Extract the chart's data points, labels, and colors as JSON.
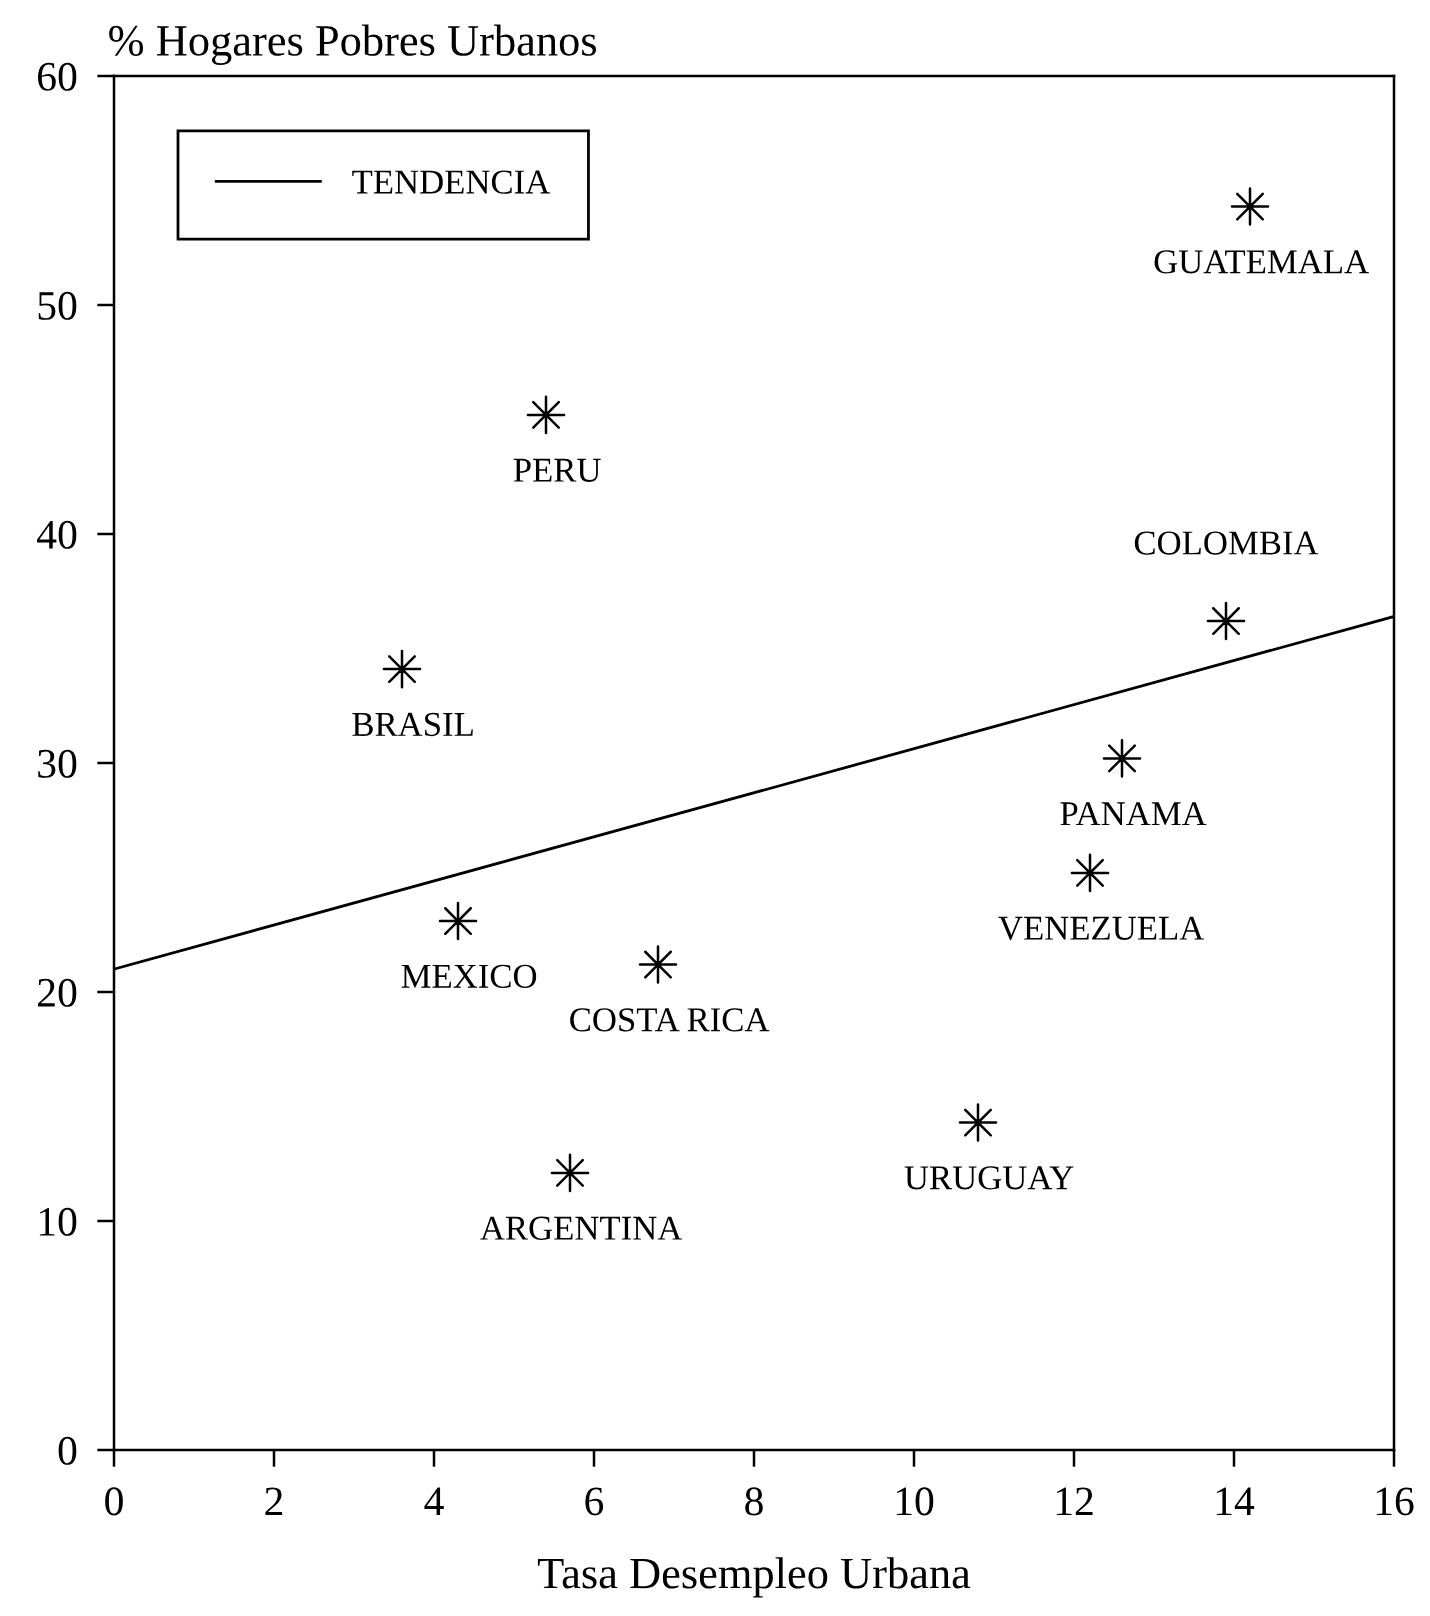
{
  "chart_data": {
    "type": "scatter",
    "xlabel": "Tasa Desempleo Urbana",
    "ylabel": "% Hogares Pobres Urbanos",
    "xlim": [
      0,
      16
    ],
    "xticks": [
      0,
      2,
      4,
      6,
      8,
      10,
      12,
      14,
      16
    ],
    "ylim": [
      0,
      60
    ],
    "yticks": [
      0,
      10,
      20,
      30,
      40,
      50,
      60
    ],
    "legend": "top left",
    "series": [
      {
        "color": "#000000",
        "marker": "star",
        "x": [
          14.2,
          5.4,
          13.9,
          3.6,
          12.6,
          12.2,
          4.3,
          6.8,
          5.7,
          10.8
        ],
        "values": [
          54.3,
          45.2,
          36.2,
          34.1,
          30.2,
          25.2,
          23.1,
          21.2,
          12.1,
          14.3
        ]
      },
      {
        "type": "line",
        "name": "TENDENCIA",
        "color": "#000000",
        "x": [
          0,
          16
        ],
        "values": [
          21.0,
          36.4
        ]
      }
    ],
    "annotations": [
      {
        "text": "GUATEMALA",
        "x": 14.2,
        "y": 54.3
      },
      {
        "text": "PERU",
        "x": 5.4,
        "y": 45.2
      },
      {
        "text": "COLOMBIA",
        "x": 13.9,
        "y": 36.2
      },
      {
        "text": "BRASIL",
        "x": 3.6,
        "y": 34.1
      },
      {
        "text": "PANAMA",
        "x": 12.6,
        "y": 30.2
      },
      {
        "text": "VENEZUELA",
        "x": 12.2,
        "y": 25.2
      },
      {
        "text": "MEXICO",
        "x": 4.3,
        "y": 23.1
      },
      {
        "text": "COSTA RICA",
        "x": 6.8,
        "y": 21.2
      },
      {
        "text": "ARGENTINA",
        "x": 5.7,
        "y": 12.1
      },
      {
        "text": "URUGUAY",
        "x": 10.8,
        "y": 14.3
      }
    ]
  }
}
